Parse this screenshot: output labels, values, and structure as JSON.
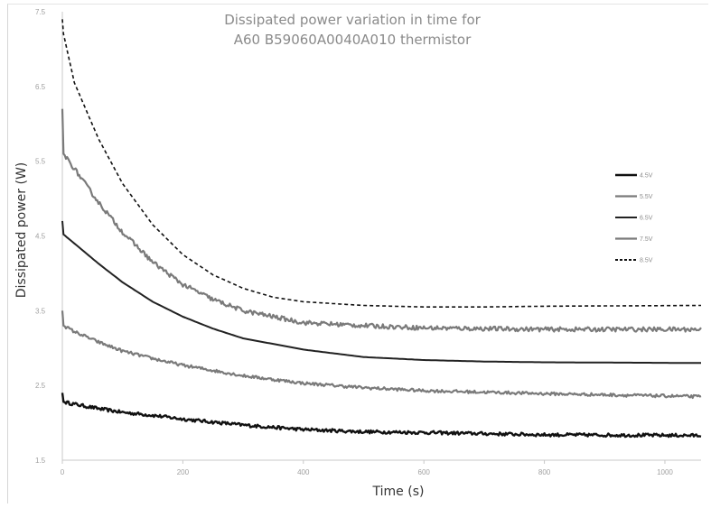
{
  "chart_data": {
    "type": "line",
    "title_line1": "Dissipated power variation in time for",
    "title_line2": "A60 B59060A0040A010 thermistor",
    "xlabel": "Time (s)",
    "ylabel": "Dissipated power (W)",
    "xlim": [
      0,
      1060
    ],
    "ylim": [
      1.5,
      7.5
    ],
    "x_ticks": [
      0,
      200,
      400,
      600,
      800,
      1000
    ],
    "x_tick_labels": [
      "0",
      "200",
      "400",
      "600",
      "800",
      "1000"
    ],
    "y_ticks": [
      1.5,
      2.5,
      3.5,
      4.5,
      5.5,
      6.5,
      7.5
    ],
    "y_tick_labels": [
      "1.5",
      "2.5",
      "3.5",
      "4.5",
      "5.5",
      "6.5",
      "7.5"
    ],
    "grid": false,
    "legend_position": "right",
    "series": [
      {
        "name": "4.5V",
        "color": "#111111",
        "width": 2.4,
        "dash": "",
        "noise": 0.022,
        "x": [
          0,
          2,
          20,
          60,
          100,
          150,
          200,
          300,
          400,
          500,
          600,
          800,
          1060
        ],
        "y": [
          2.4,
          2.28,
          2.25,
          2.19,
          2.14,
          2.1,
          2.05,
          1.97,
          1.91,
          1.88,
          1.87,
          1.84,
          1.83
        ]
      },
      {
        "name": "5.5V",
        "color": "#7a7a7a",
        "width": 2.2,
        "dash": "",
        "noise": 0.02,
        "x": [
          0,
          2,
          20,
          60,
          100,
          150,
          200,
          300,
          400,
          500,
          600,
          800,
          1060
        ],
        "y": [
          3.5,
          3.3,
          3.22,
          3.08,
          2.96,
          2.86,
          2.77,
          2.63,
          2.53,
          2.47,
          2.43,
          2.39,
          2.35
        ]
      },
      {
        "name": "6.5V",
        "color": "#222222",
        "width": 2.0,
        "dash": "",
        "noise": 0.0,
        "x": [
          0,
          2,
          20,
          60,
          100,
          150,
          200,
          250,
          300,
          400,
          500,
          600,
          700,
          800,
          1060
        ],
        "y": [
          4.7,
          4.52,
          4.4,
          4.13,
          3.88,
          3.62,
          3.42,
          3.26,
          3.13,
          2.98,
          2.88,
          2.84,
          2.82,
          2.81,
          2.8
        ]
      },
      {
        "name": "7.5V",
        "color": "#7a7a7a",
        "width": 2.2,
        "dash": "",
        "noise": 0.03,
        "x": [
          0,
          2,
          20,
          60,
          100,
          150,
          200,
          250,
          300,
          400,
          500,
          600,
          800,
          1060
        ],
        "y": [
          6.2,
          5.6,
          5.4,
          4.95,
          4.55,
          4.15,
          3.85,
          3.65,
          3.5,
          3.34,
          3.3,
          3.27,
          3.25,
          3.25
        ]
      },
      {
        "name": "8.5V",
        "color": "#111111",
        "width": 1.6,
        "dash": "4,3",
        "noise": 0.0,
        "x": [
          0,
          2,
          20,
          60,
          100,
          150,
          200,
          250,
          300,
          350,
          400,
          500,
          600,
          700,
          800,
          1060
        ],
        "y": [
          7.4,
          7.2,
          6.55,
          5.8,
          5.2,
          4.65,
          4.25,
          3.98,
          3.8,
          3.68,
          3.62,
          3.57,
          3.55,
          3.55,
          3.56,
          3.57
        ]
      }
    ]
  }
}
